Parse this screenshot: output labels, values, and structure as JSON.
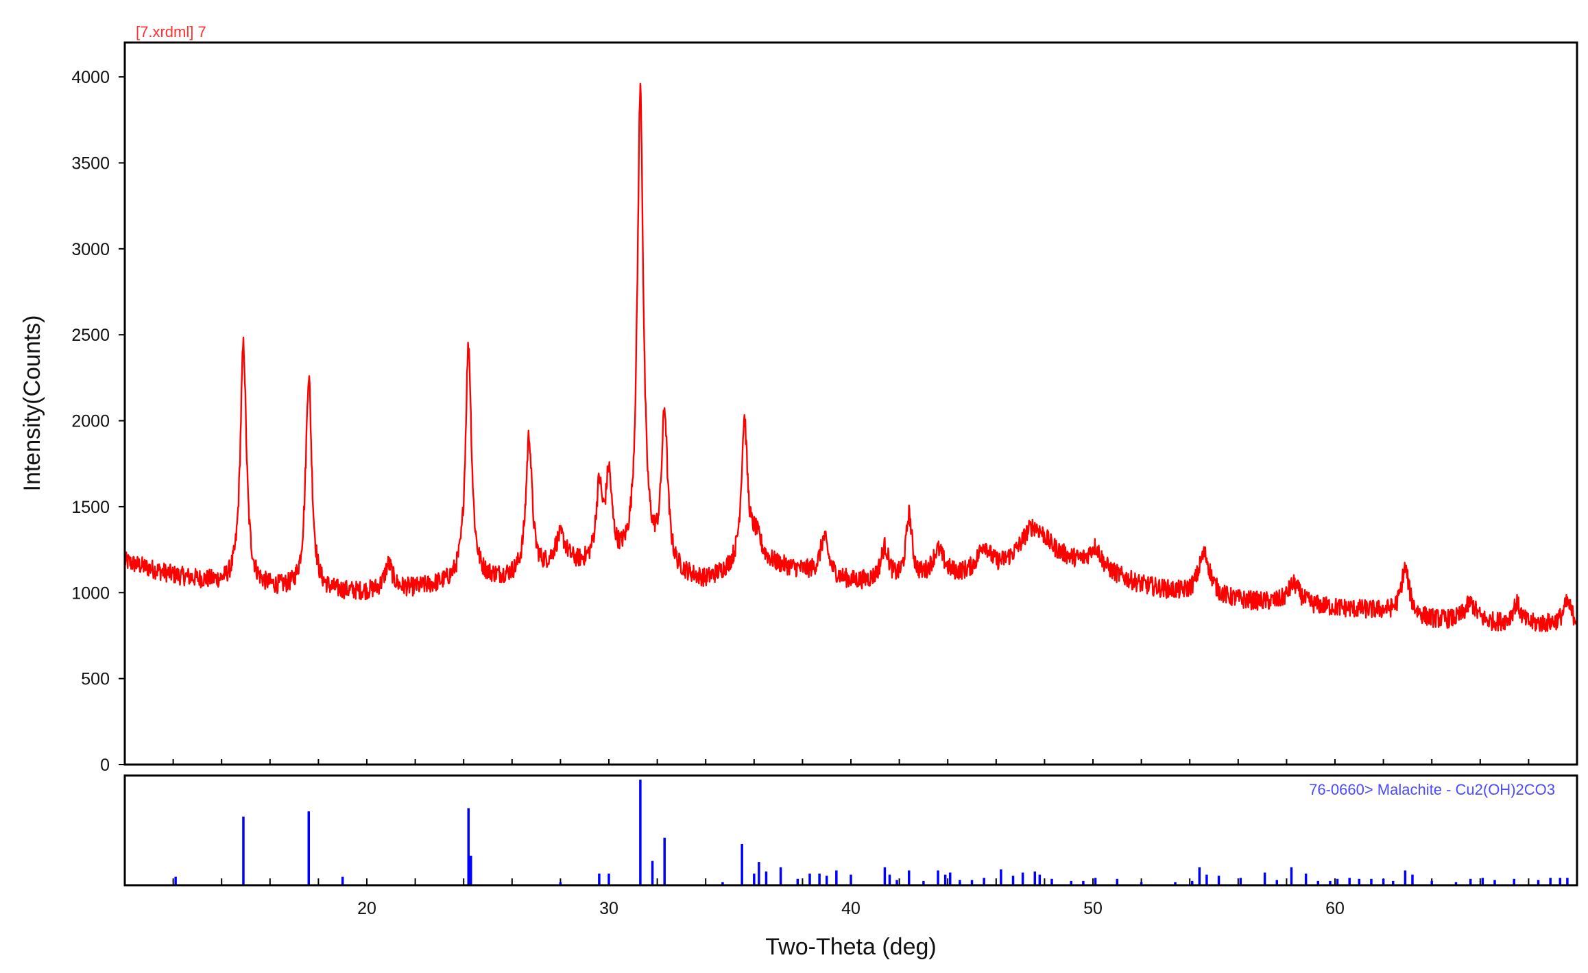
{
  "chart_data": {
    "type": "line",
    "scan_label": "[7.xrdml] 7",
    "xlabel": "Two-Theta (deg)",
    "ylabel": "Intensity(Counts)",
    "xlim": [
      10,
      70
    ],
    "ylim": [
      0,
      4200
    ],
    "x_ticks": [
      20,
      30,
      40,
      50,
      60
    ],
    "y_ticks": [
      0,
      500,
      1000,
      1500,
      2000,
      2500,
      3000,
      3500,
      4000
    ],
    "colors": {
      "pattern": "#ff0000",
      "reference": "#0000ff"
    },
    "pattern": {
      "background": [
        [
          10,
          1180
        ],
        [
          12,
          1100
        ],
        [
          14,
          1050
        ],
        [
          16,
          1020
        ],
        [
          18,
          1000
        ],
        [
          20,
          1000
        ],
        [
          22,
          1020
        ],
        [
          24,
          1060
        ],
        [
          26,
          1080
        ],
        [
          28,
          1130
        ],
        [
          30,
          1160
        ],
        [
          32,
          1120
        ],
        [
          34,
          1060
        ],
        [
          36,
          1180
        ],
        [
          38,
          1120
        ],
        [
          40,
          1060
        ],
        [
          42,
          1050
        ],
        [
          44,
          1080
        ],
        [
          46,
          1120
        ],
        [
          48,
          1220
        ],
        [
          50,
          1140
        ],
        [
          52,
          1040
        ],
        [
          54,
          980
        ],
        [
          56,
          950
        ],
        [
          58,
          930
        ],
        [
          60,
          910
        ],
        [
          62,
          890
        ],
        [
          64,
          840
        ],
        [
          66,
          820
        ],
        [
          68,
          810
        ],
        [
          70,
          820
        ]
      ],
      "peaks": [
        {
          "x": 14.9,
          "height": 1400,
          "width": 0.15
        },
        {
          "x": 17.6,
          "height": 1250,
          "width": 0.15
        },
        {
          "x": 20.9,
          "height": 150,
          "width": 0.2
        },
        {
          "x": 24.2,
          "height": 1370,
          "width": 0.15
        },
        {
          "x": 26.7,
          "height": 800,
          "width": 0.15
        },
        {
          "x": 28.0,
          "height": 180,
          "width": 0.3
        },
        {
          "x": 29.6,
          "height": 420,
          "width": 0.15
        },
        {
          "x": 30.0,
          "height": 480,
          "width": 0.15
        },
        {
          "x": 31.3,
          "height": 2760,
          "width": 0.15
        },
        {
          "x": 32.3,
          "height": 900,
          "width": 0.15
        },
        {
          "x": 35.6,
          "height": 830,
          "width": 0.15
        },
        {
          "x": 36.1,
          "height": 120,
          "width": 0.25
        },
        {
          "x": 38.9,
          "height": 220,
          "width": 0.2
        },
        {
          "x": 41.4,
          "height": 200,
          "width": 0.2
        },
        {
          "x": 42.4,
          "height": 380,
          "width": 0.15
        },
        {
          "x": 43.6,
          "height": 160,
          "width": 0.3
        },
        {
          "x": 45.5,
          "height": 150,
          "width": 0.3
        },
        {
          "x": 47.5,
          "height": 180,
          "width": 0.6
        },
        {
          "x": 50.1,
          "height": 120,
          "width": 0.3
        },
        {
          "x": 54.6,
          "height": 250,
          "width": 0.3
        },
        {
          "x": 58.3,
          "height": 120,
          "width": 0.3
        },
        {
          "x": 62.9,
          "height": 270,
          "width": 0.2
        },
        {
          "x": 65.6,
          "height": 110,
          "width": 0.3
        },
        {
          "x": 67.5,
          "height": 120,
          "width": 0.2
        },
        {
          "x": 69.6,
          "height": 120,
          "width": 0.2
        }
      ],
      "noise": 55,
      "step": 0.02
    },
    "reference": {
      "label": "76-0660> Malachite - Cu2(OH)2CO3",
      "lines": [
        {
          "x": 12.1,
          "rel": 8
        },
        {
          "x": 14.9,
          "rel": 65
        },
        {
          "x": 17.6,
          "rel": 70
        },
        {
          "x": 19.0,
          "rel": 8
        },
        {
          "x": 24.2,
          "rel": 73
        },
        {
          "x": 24.3,
          "rel": 28
        },
        {
          "x": 28.0,
          "rel": 3
        },
        {
          "x": 29.6,
          "rel": 11
        },
        {
          "x": 30.0,
          "rel": 11
        },
        {
          "x": 31.3,
          "rel": 100
        },
        {
          "x": 31.8,
          "rel": 23
        },
        {
          "x": 32.3,
          "rel": 45
        },
        {
          "x": 34.7,
          "rel": 3
        },
        {
          "x": 35.5,
          "rel": 39
        },
        {
          "x": 36.0,
          "rel": 11
        },
        {
          "x": 36.2,
          "rel": 22
        },
        {
          "x": 36.5,
          "rel": 13
        },
        {
          "x": 37.1,
          "rel": 17
        },
        {
          "x": 37.8,
          "rel": 6
        },
        {
          "x": 38.3,
          "rel": 11
        },
        {
          "x": 38.7,
          "rel": 11
        },
        {
          "x": 39.0,
          "rel": 9
        },
        {
          "x": 39.4,
          "rel": 14
        },
        {
          "x": 40.0,
          "rel": 10
        },
        {
          "x": 41.4,
          "rel": 17
        },
        {
          "x": 41.6,
          "rel": 10
        },
        {
          "x": 41.9,
          "rel": 5
        },
        {
          "x": 42.4,
          "rel": 14
        },
        {
          "x": 43.0,
          "rel": 4
        },
        {
          "x": 43.6,
          "rel": 14
        },
        {
          "x": 43.9,
          "rel": 10
        },
        {
          "x": 44.1,
          "rel": 12
        },
        {
          "x": 44.5,
          "rel": 5
        },
        {
          "x": 45.0,
          "rel": 5
        },
        {
          "x": 45.5,
          "rel": 7
        },
        {
          "x": 46.2,
          "rel": 15
        },
        {
          "x": 46.7,
          "rel": 9
        },
        {
          "x": 47.1,
          "rel": 12
        },
        {
          "x": 47.6,
          "rel": 13
        },
        {
          "x": 47.8,
          "rel": 10
        },
        {
          "x": 48.3,
          "rel": 6
        },
        {
          "x": 49.1,
          "rel": 4
        },
        {
          "x": 49.6,
          "rel": 4
        },
        {
          "x": 50.1,
          "rel": 7
        },
        {
          "x": 51.0,
          "rel": 6
        },
        {
          "x": 52.0,
          "rel": 3
        },
        {
          "x": 53.4,
          "rel": 3
        },
        {
          "x": 54.1,
          "rel": 4
        },
        {
          "x": 54.4,
          "rel": 17
        },
        {
          "x": 54.7,
          "rel": 10
        },
        {
          "x": 55.2,
          "rel": 9
        },
        {
          "x": 56.1,
          "rel": 7
        },
        {
          "x": 57.1,
          "rel": 12
        },
        {
          "x": 57.6,
          "rel": 5
        },
        {
          "x": 58.2,
          "rel": 17
        },
        {
          "x": 58.8,
          "rel": 11
        },
        {
          "x": 59.3,
          "rel": 4
        },
        {
          "x": 59.8,
          "rel": 4
        },
        {
          "x": 60.1,
          "rel": 6
        },
        {
          "x": 60.6,
          "rel": 7
        },
        {
          "x": 61.0,
          "rel": 6
        },
        {
          "x": 61.5,
          "rel": 6
        },
        {
          "x": 62.0,
          "rel": 6
        },
        {
          "x": 62.4,
          "rel": 4
        },
        {
          "x": 62.9,
          "rel": 14
        },
        {
          "x": 63.2,
          "rel": 10
        },
        {
          "x": 64.0,
          "rel": 4
        },
        {
          "x": 65.0,
          "rel": 3
        },
        {
          "x": 65.6,
          "rel": 6
        },
        {
          "x": 66.1,
          "rel": 7
        },
        {
          "x": 66.6,
          "rel": 5
        },
        {
          "x": 67.4,
          "rel": 6
        },
        {
          "x": 68.4,
          "rel": 5
        },
        {
          "x": 68.9,
          "rel": 7
        },
        {
          "x": 69.3,
          "rel": 7
        },
        {
          "x": 69.6,
          "rel": 7
        }
      ]
    }
  }
}
